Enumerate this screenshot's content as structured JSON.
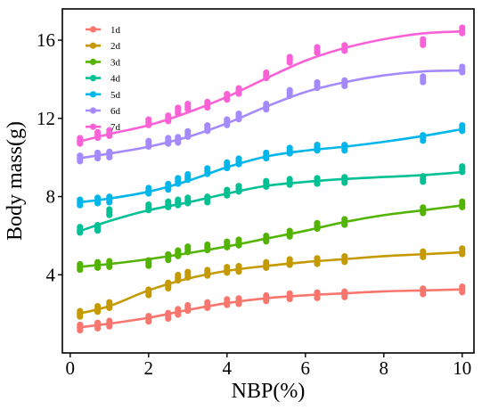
{
  "chart_data": {
    "type": "scatter",
    "xlabel": "NBP(%)",
    "ylabel": "Body mass(g)",
    "xlim": [
      -0.2,
      10.3
    ],
    "ylim": [
      0,
      17.6
    ],
    "x_ticks": [
      "0",
      "2",
      "4",
      "6",
      "8",
      "10"
    ],
    "y_ticks": [
      "4",
      "8",
      "12",
      "16"
    ],
    "x_tick_values": [
      0,
      2,
      4,
      6,
      8,
      10
    ],
    "y_tick_values": [
      4,
      8,
      12,
      16
    ],
    "grid": false,
    "legend_position": "top-left",
    "series": [
      {
        "name": "1d",
        "color": "#F8766D",
        "x": [
          0.25,
          0.7,
          1.0,
          2.0,
          2.5,
          2.75,
          3.0,
          3.5,
          4.0,
          4.3,
          5.0,
          5.6,
          6.3,
          7.0,
          9.0,
          10.0
        ],
        "y": [
          1.3,
          1.4,
          1.5,
          1.75,
          1.9,
          2.1,
          2.3,
          2.45,
          2.6,
          2.65,
          2.8,
          2.9,
          2.95,
          3.0,
          3.15,
          3.25
        ],
        "fit": [
          [
            0.2,
            1.3
          ],
          [
            1,
            1.5
          ],
          [
            2,
            1.8
          ],
          [
            3,
            2.2
          ],
          [
            4,
            2.55
          ],
          [
            5,
            2.8
          ],
          [
            6,
            2.95
          ],
          [
            7,
            3.05
          ],
          [
            8,
            3.15
          ],
          [
            9,
            3.2
          ],
          [
            10,
            3.25
          ]
        ]
      },
      {
        "name": "2d",
        "color": "#C49A00",
        "x": [
          0.25,
          0.7,
          1.0,
          2.0,
          2.5,
          2.75,
          3.0,
          3.5,
          4.0,
          4.3,
          5.0,
          5.6,
          6.3,
          7.0,
          9.0,
          10.0
        ],
        "y": [
          2.0,
          2.25,
          2.45,
          3.1,
          3.45,
          3.85,
          4.0,
          4.1,
          4.25,
          4.3,
          4.5,
          4.65,
          4.7,
          4.8,
          5.05,
          5.2
        ],
        "fit": [
          [
            0.2,
            2.0
          ],
          [
            1,
            2.4
          ],
          [
            2,
            3.2
          ],
          [
            3,
            3.8
          ],
          [
            4,
            4.2
          ],
          [
            5,
            4.45
          ],
          [
            6,
            4.65
          ],
          [
            7,
            4.8
          ],
          [
            8,
            4.95
          ],
          [
            9,
            5.05
          ],
          [
            10,
            5.15
          ]
        ]
      },
      {
        "name": "3d",
        "color": "#53B400",
        "x": [
          0.25,
          0.7,
          1.0,
          2.0,
          2.5,
          2.75,
          3.0,
          3.5,
          4.0,
          4.3,
          5.0,
          5.6,
          6.3,
          7.0,
          9.0,
          10.0
        ],
        "y": [
          4.4,
          4.5,
          4.55,
          4.6,
          4.9,
          5.1,
          5.3,
          5.4,
          5.55,
          5.65,
          5.85,
          6.1,
          6.5,
          6.7,
          7.3,
          7.6
        ],
        "fit": [
          [
            0.2,
            4.4
          ],
          [
            1,
            4.55
          ],
          [
            2,
            4.8
          ],
          [
            3,
            5.1
          ],
          [
            4,
            5.45
          ],
          [
            5,
            5.85
          ],
          [
            6,
            6.25
          ],
          [
            7,
            6.7
          ],
          [
            8,
            7.05
          ],
          [
            9,
            7.3
          ],
          [
            10,
            7.55
          ]
        ]
      },
      {
        "name": "4d",
        "color": "#00C094",
        "x": [
          0.25,
          0.7,
          1.0,
          2.0,
          2.5,
          2.75,
          3.0,
          3.5,
          4.0,
          4.3,
          5.0,
          5.6,
          6.3,
          7.0,
          9.0,
          10.0
        ],
        "y": [
          6.3,
          6.4,
          7.2,
          7.45,
          7.6,
          7.7,
          7.8,
          7.85,
          8.2,
          8.4,
          8.65,
          8.75,
          8.8,
          8.85,
          8.9,
          9.4
        ],
        "fit": [
          [
            0.2,
            6.2
          ],
          [
            1,
            6.75
          ],
          [
            2,
            7.3
          ],
          [
            3,
            7.7
          ],
          [
            4,
            8.15
          ],
          [
            5,
            8.55
          ],
          [
            6,
            8.75
          ],
          [
            7,
            8.9
          ],
          [
            8,
            9.0
          ],
          [
            9,
            9.1
          ],
          [
            10,
            9.25
          ]
        ]
      },
      {
        "name": "5d",
        "color": "#00B6EB",
        "x": [
          0.25,
          0.7,
          1.0,
          2.0,
          2.5,
          2.75,
          3.0,
          3.5,
          4.0,
          4.3,
          5.0,
          5.6,
          6.3,
          7.0,
          9.0,
          10.0
        ],
        "y": [
          7.7,
          7.8,
          7.85,
          8.3,
          8.5,
          8.8,
          9.0,
          9.3,
          9.6,
          9.8,
          10.1,
          10.35,
          10.5,
          10.5,
          11.0,
          11.5
        ],
        "fit": [
          [
            0.2,
            7.7
          ],
          [
            1,
            7.9
          ],
          [
            2,
            8.25
          ],
          [
            3,
            8.8
          ],
          [
            4,
            9.5
          ],
          [
            5,
            10.05
          ],
          [
            6,
            10.35
          ],
          [
            7,
            10.55
          ],
          [
            8,
            10.8
          ],
          [
            9,
            11.1
          ],
          [
            10,
            11.45
          ]
        ]
      },
      {
        "name": "6d",
        "color": "#A58AFF",
        "x": [
          0.25,
          0.7,
          1.0,
          2.0,
          2.5,
          2.75,
          3.0,
          3.5,
          4.0,
          4.3,
          5.0,
          5.6,
          6.3,
          7.0,
          9.0,
          10.0
        ],
        "y": [
          9.95,
          10.1,
          10.15,
          10.7,
          10.85,
          10.9,
          11.2,
          11.5,
          11.8,
          12.1,
          12.6,
          13.3,
          13.7,
          13.8,
          14.0,
          14.5
        ],
        "fit": [
          [
            0.2,
            9.95
          ],
          [
            1,
            10.2
          ],
          [
            2,
            10.55
          ],
          [
            3,
            11.05
          ],
          [
            4,
            11.75
          ],
          [
            5,
            12.6
          ],
          [
            6,
            13.35
          ],
          [
            7,
            13.85
          ],
          [
            8,
            14.2
          ],
          [
            9,
            14.4
          ],
          [
            10,
            14.45
          ]
        ]
      },
      {
        "name": "7d",
        "color": "#FB61D7",
        "x": [
          0.25,
          0.7,
          1.0,
          2.0,
          2.5,
          2.75,
          3.0,
          3.5,
          4.0,
          4.3,
          5.0,
          5.6,
          6.3,
          7.0,
          9.0,
          10.0
        ],
        "y": [
          10.85,
          11.15,
          11.25,
          11.8,
          12.0,
          12.4,
          12.6,
          12.7,
          13.1,
          13.4,
          14.2,
          15.0,
          15.5,
          15.6,
          15.9,
          16.5
        ],
        "fit": [
          [
            0.2,
            10.8
          ],
          [
            1,
            11.2
          ],
          [
            2,
            11.65
          ],
          [
            3,
            12.3
          ],
          [
            4,
            13.1
          ],
          [
            5,
            14.05
          ],
          [
            6,
            14.95
          ],
          [
            7,
            15.6
          ],
          [
            8,
            16.05
          ],
          [
            9,
            16.35
          ],
          [
            10,
            16.45
          ]
        ]
      }
    ]
  }
}
